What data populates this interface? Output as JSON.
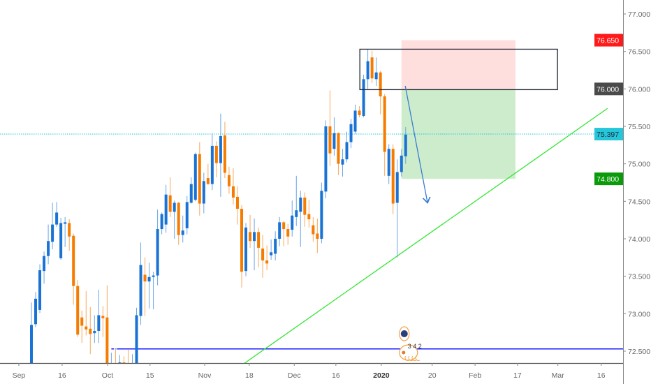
{
  "chart_data": {
    "type": "candlestick",
    "symbol_note": "",
    "colors": {
      "up": "#1a73d4",
      "up_wick": "#6aa5e6",
      "down": "#f57c00",
      "down_wick": "#f8a85a",
      "trendline": "#33e633",
      "support": "#1a1aff",
      "last_price": "#26c6da",
      "rect": "#1e2330",
      "stop_zone": "#ffdede",
      "target_zone": "#cdeccb",
      "arrow": "#3a7bd5"
    },
    "y_axis": {
      "min": 72.34,
      "max": 77.18,
      "ticks": [
        "77.000",
        "76.500",
        "76.000",
        "75.500",
        "75.000",
        "74.500",
        "74.000",
        "73.500",
        "73.000",
        "72.500"
      ],
      "tick_values": [
        77.0,
        76.5,
        76.0,
        75.5,
        75.0,
        74.5,
        74.0,
        73.5,
        73.0,
        72.5
      ]
    },
    "x_axis": {
      "ticks": [
        {
          "label": "Sep",
          "bar": -3
        },
        {
          "label": "16",
          "bar": 7.3
        },
        {
          "label": "Oct",
          "bar": 18.1
        },
        {
          "label": "15",
          "bar": 28.2
        },
        {
          "label": "Nov",
          "bar": 41.2
        },
        {
          "label": "18",
          "bar": 51.8
        },
        {
          "label": "Dec",
          "bar": 62.5
        },
        {
          "label": "16",
          "bar": 72.4
        },
        {
          "label": "2020",
          "bar": 83.2,
          "bold": true
        },
        {
          "label": "20",
          "bar": 95.3
        },
        {
          "label": "Feb",
          "bar": 105.5
        },
        {
          "label": "17",
          "bar": 115.6
        },
        {
          "label": "Mar",
          "bar": 125.2
        },
        {
          "label": "16",
          "bar": 135.5
        }
      ]
    },
    "candles_ohlc": [
      [
        72.3,
        73.15,
        72.2,
        72.85
      ],
      [
        72.86,
        73.29,
        72.82,
        73.2
      ],
      [
        73.05,
        73.66,
        73.01,
        73.58
      ],
      [
        73.57,
        73.83,
        73.4,
        73.77
      ],
      [
        73.77,
        74.19,
        73.66,
        73.97
      ],
      [
        73.96,
        74.48,
        73.86,
        74.19
      ],
      [
        74.19,
        74.49,
        74.16,
        74.35
      ],
      [
        73.74,
        74.28,
        73.72,
        74.21
      ],
      [
        74.2,
        74.29,
        73.89,
        74.22
      ],
      [
        74.21,
        74.26,
        73.84,
        74.03
      ],
      [
        74.04,
        74.07,
        73.12,
        73.37
      ],
      [
        73.37,
        73.45,
        72.69,
        72.72
      ],
      [
        72.95,
        73.04,
        72.61,
        72.84
      ],
      [
        72.83,
        73.3,
        72.71,
        72.79
      ],
      [
        72.8,
        73.09,
        72.46,
        72.73
      ],
      [
        72.74,
        72.98,
        72.61,
        72.77
      ],
      [
        72.77,
        73.32,
        72.61,
        72.98
      ],
      [
        72.97,
        73.1,
        72.69,
        72.94
      ],
      [
        72.95,
        73.38,
        72.1,
        72.2
      ],
      [
        72.2,
        72.48,
        72.0,
        72.3
      ],
      [
        72.3,
        72.52,
        72.1,
        72.25
      ],
      [
        72.25,
        72.45,
        72.1,
        72.35
      ],
      [
        72.35,
        72.43,
        72.1,
        72.2
      ],
      [
        72.2,
        72.52,
        72.0,
        72.15
      ],
      [
        72.15,
        72.46,
        72.0,
        72.3
      ],
      [
        72.3,
        73.08,
        72.2,
        72.98
      ],
      [
        72.97,
        73.95,
        72.85,
        73.65
      ],
      [
        73.52,
        73.75,
        72.97,
        73.43
      ],
      [
        73.43,
        73.68,
        73.07,
        73.49
      ],
      [
        73.49,
        73.56,
        73.06,
        73.51
      ],
      [
        73.51,
        74.39,
        73.38,
        74.13
      ],
      [
        74.13,
        74.35,
        74.06,
        74.33
      ],
      [
        74.19,
        74.72,
        74.08,
        74.59
      ],
      [
        74.58,
        74.82,
        74.29,
        74.36
      ],
      [
        74.36,
        74.51,
        74.0,
        74.48
      ],
      [
        74.48,
        74.49,
        73.92,
        74.05
      ],
      [
        74.05,
        74.31,
        73.95,
        74.11
      ],
      [
        74.14,
        74.57,
        74.06,
        74.49
      ],
      [
        74.48,
        74.82,
        74.47,
        74.73
      ],
      [
        74.52,
        75.15,
        74.5,
        75.13
      ],
      [
        75.13,
        75.29,
        74.31,
        74.47
      ],
      [
        74.47,
        74.88,
        74.34,
        74.77
      ],
      [
        74.81,
        75.0,
        74.72,
        74.73
      ],
      [
        74.73,
        75.41,
        74.65,
        75.24
      ],
      [
        75.24,
        75.3,
        74.82,
        75.01
      ],
      [
        75.01,
        75.67,
        74.56,
        75.37
      ],
      [
        75.38,
        75.56,
        74.81,
        74.88
      ],
      [
        74.85,
        74.96,
        74.6,
        74.7
      ],
      [
        74.7,
        74.94,
        74.46,
        74.55
      ],
      [
        74.56,
        74.7,
        74.19,
        74.4
      ],
      [
        74.4,
        74.45,
        73.35,
        73.56
      ],
      [
        73.57,
        74.21,
        73.5,
        74.15
      ],
      [
        74.09,
        74.32,
        73.88,
        73.97
      ],
      [
        73.97,
        74.27,
        73.58,
        74.09
      ],
      [
        74.09,
        74.15,
        73.62,
        73.88
      ],
      [
        73.87,
        74.05,
        73.48,
        73.71
      ],
      [
        73.71,
        73.91,
        73.58,
        73.67
      ],
      [
        73.78,
        73.99,
        73.72,
        73.82
      ],
      [
        73.8,
        74.1,
        73.71,
        74.0
      ],
      [
        74.0,
        74.29,
        73.9,
        74.22
      ],
      [
        74.22,
        74.24,
        73.9,
        74.13
      ],
      [
        74.13,
        74.2,
        73.92,
        74.03
      ],
      [
        74.12,
        74.51,
        74.03,
        74.31
      ],
      [
        74.29,
        74.84,
        74.17,
        74.38
      ],
      [
        74.36,
        74.64,
        73.89,
        74.55
      ],
      [
        74.55,
        74.62,
        74.16,
        74.32
      ],
      [
        74.33,
        74.52,
        74.15,
        74.26
      ],
      [
        74.18,
        74.29,
        73.96,
        74.06
      ],
      [
        74.07,
        74.27,
        73.81,
        74.0
      ],
      [
        74.0,
        74.75,
        73.94,
        74.64
      ],
      [
        74.63,
        75.58,
        74.54,
        75.5
      ],
      [
        75.5,
        75.98,
        74.97,
        75.14
      ],
      [
        75.2,
        75.62,
        75.11,
        75.41
      ],
      [
        75.41,
        75.42,
        74.85,
        75.0
      ],
      [
        74.99,
        75.2,
        74.83,
        75.06
      ],
      [
        75.06,
        75.43,
        75.02,
        75.29
      ],
      [
        75.29,
        75.6,
        75.21,
        75.53
      ],
      [
        75.43,
        75.79,
        75.4,
        75.71
      ],
      [
        75.71,
        75.77,
        75.62,
        75.65
      ],
      [
        75.64,
        76.19,
        75.62,
        76.13
      ],
      [
        76.13,
        76.53,
        76.0,
        76.37
      ],
      [
        76.42,
        76.51,
        76.08,
        76.14
      ],
      [
        76.13,
        76.42,
        76.04,
        76.22
      ],
      [
        76.22,
        76.24,
        75.66,
        75.9
      ],
      [
        75.9,
        75.93,
        74.84,
        75.16
      ],
      [
        74.84,
        75.26,
        74.73,
        75.2
      ],
      [
        75.2,
        75.26,
        74.33,
        74.47
      ],
      [
        74.48,
        75.06,
        73.75,
        74.89
      ],
      [
        74.89,
        75.2,
        74.83,
        75.11
      ],
      [
        75.1,
        75.49,
        75.0,
        75.39
      ]
    ],
    "drawings": {
      "resistance_box": {
        "from_bar": 78.1,
        "to_bar": 125.1,
        "top": 76.53,
        "bottom": 75.99
      },
      "short_position": {
        "from_bar": 88,
        "to_bar": 115.1,
        "entry": 76.0,
        "stop": 76.65,
        "target": 74.8
      },
      "trendline": {
        "from_bar": 50.7,
        "from_price": 72.34,
        "to_bar": 137,
        "to_price": 75.74
      },
      "support_line": {
        "price": 72.53,
        "from_bar": 19
      },
      "arrow": {
        "from_bar": 88.9,
        "from_price": 76.04,
        "to_bar": 94.2,
        "to_price": 74.48
      },
      "last_price_line": 75.397
    },
    "price_labels": [
      {
        "text": "76.650",
        "value": 76.65,
        "bg": "#ff1a1a",
        "fg": "#ffffff"
      },
      {
        "text": "76.000",
        "value": 76.0,
        "bg": "#4a4a4a",
        "fg": "#ffffff"
      },
      {
        "text": "75.397",
        "value": 75.397,
        "bg": "#26c6da",
        "fg": "#1b2a3a"
      },
      {
        "text": "74.800",
        "value": 74.8,
        "bg": "#0a9a0a",
        "fg": "#ffffff"
      }
    ],
    "events": {
      "count_label": "3 4 2",
      "bar": 89
    }
  }
}
